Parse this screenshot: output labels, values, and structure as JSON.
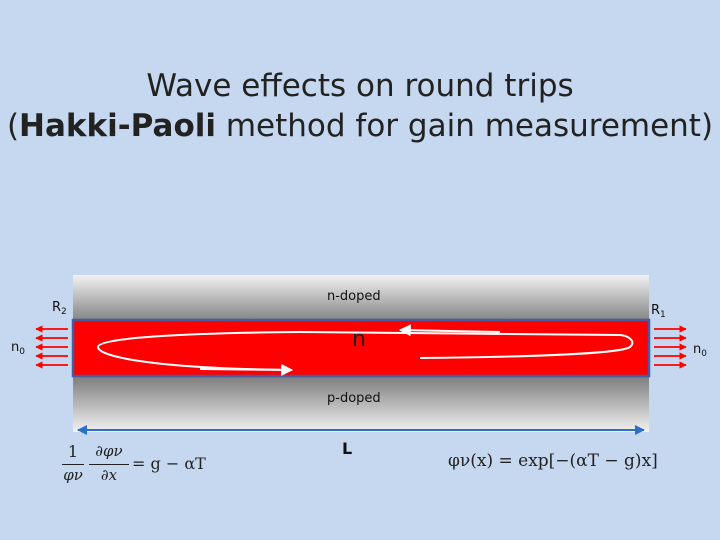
{
  "title": {
    "line1": "Wave effects on round trips",
    "line2_open": "(",
    "line2_bold": "Hakki-Paoli",
    "line2_rest": " method for gain measurement)"
  },
  "labels": {
    "n_doped": "n-doped",
    "p_doped": "p-doped",
    "core": "n",
    "length": "L",
    "r2_base": "R",
    "r2_sub": "2",
    "r1_base": "R",
    "r1_sub": "1",
    "n0_left_base": "n",
    "n0_left_sub": "0",
    "n0_right_base": "n",
    "n0_right_sub": "0"
  },
  "equations": {
    "left_lhs_numer": "1",
    "left_lhs_denom": "φν",
    "left_partial_numer": "∂φν",
    "left_partial_denom": "∂x",
    "left_rhs": "= g − αT",
    "right": "φν(x) = exp[−(αT − g)x]"
  },
  "colors": {
    "background": "#c5d8ef",
    "active_layer": "#ff0000",
    "cladding": "#9a9a9a",
    "arrow_blue": "#2e6fc4",
    "wave_arrow": "#ffffff",
    "facet_arrows": "#ff0000"
  }
}
